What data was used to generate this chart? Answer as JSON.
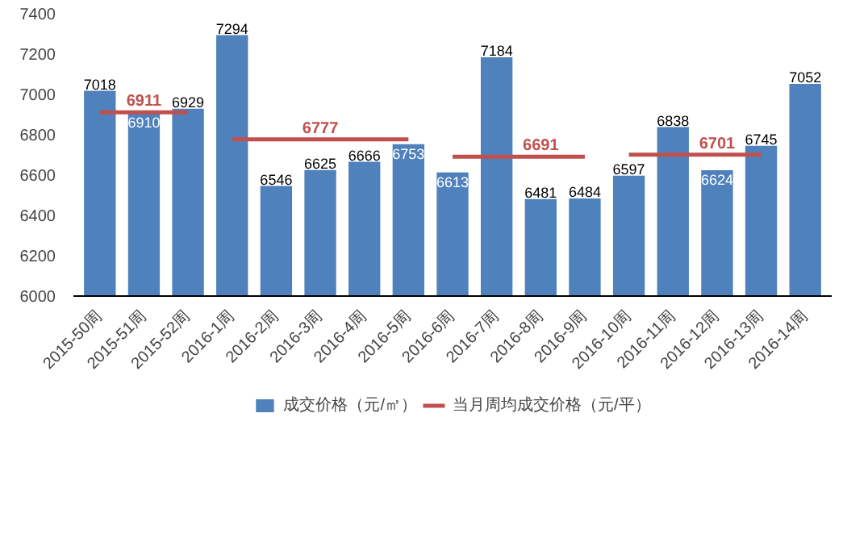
{
  "chart_data": {
    "type": "bar",
    "categories": [
      "2015-50周",
      "2015-51周",
      "2015-52周",
      "2016-1周",
      "2016-2周",
      "2016-3周",
      "2016-4周",
      "2016-5周",
      "2016-6周",
      "2016-7周",
      "2016-8周",
      "2016-9周",
      "2016-10周",
      "2016-11周",
      "2016-12周",
      "2016-13周",
      "2016-14周"
    ],
    "series": [
      {
        "name": "成交价格（元/㎡）",
        "color": "#4f81bd",
        "values": [
          7018,
          6910,
          6929,
          7294,
          6546,
          6625,
          6666,
          6753,
          6613,
          7184,
          6481,
          6484,
          6597,
          6838,
          6624,
          6745,
          7052
        ]
      },
      {
        "name": "当月周均成交价格（元/平）",
        "type": "line",
        "color": "#c0504d",
        "values": [
          6911,
          6911,
          6911,
          null,
          null,
          null,
          null,
          null,
          null,
          null,
          null,
          null,
          null,
          null,
          null,
          null,
          null
        ],
        "value_labels": [
          null,
          "6911",
          null,
          null,
          null,
          null,
          null,
          null,
          null,
          null,
          null,
          null,
          null,
          null,
          null,
          null,
          null
        ]
      },
      {
        "type": "line",
        "color": "#c0504d",
        "values": [
          null,
          null,
          null,
          6777,
          6777,
          6777,
          6777,
          6777,
          null,
          null,
          null,
          null,
          null,
          null,
          null,
          null,
          null
        ],
        "value_labels": [
          null,
          null,
          null,
          null,
          null,
          "6777",
          null,
          null,
          null,
          null,
          null,
          null,
          null,
          null,
          null,
          null,
          null
        ]
      },
      {
        "type": "line",
        "color": "#c0504d",
        "values": [
          null,
          null,
          null,
          null,
          null,
          null,
          null,
          null,
          6691,
          6691,
          6691,
          6691,
          null,
          null,
          null,
          null,
          null
        ],
        "value_labels": [
          null,
          null,
          null,
          null,
          null,
          null,
          null,
          null,
          null,
          null,
          "6691",
          null,
          null,
          null,
          null,
          null,
          null
        ]
      },
      {
        "type": "line",
        "color": "#c0504d",
        "values": [
          null,
          null,
          null,
          null,
          null,
          null,
          null,
          null,
          null,
          null,
          null,
          null,
          6701,
          6701,
          6701,
          6701,
          null
        ],
        "value_labels": [
          null,
          null,
          null,
          null,
          null,
          null,
          null,
          null,
          null,
          null,
          null,
          null,
          null,
          null,
          "6701",
          null,
          null
        ]
      }
    ],
    "data_labels": true,
    "ylim": [
      6000,
      7400
    ],
    "yticks": [
      6000,
      6200,
      6400,
      6600,
      6800,
      7000,
      7200,
      7400
    ],
    "grid": false,
    "legend": "bottom"
  }
}
